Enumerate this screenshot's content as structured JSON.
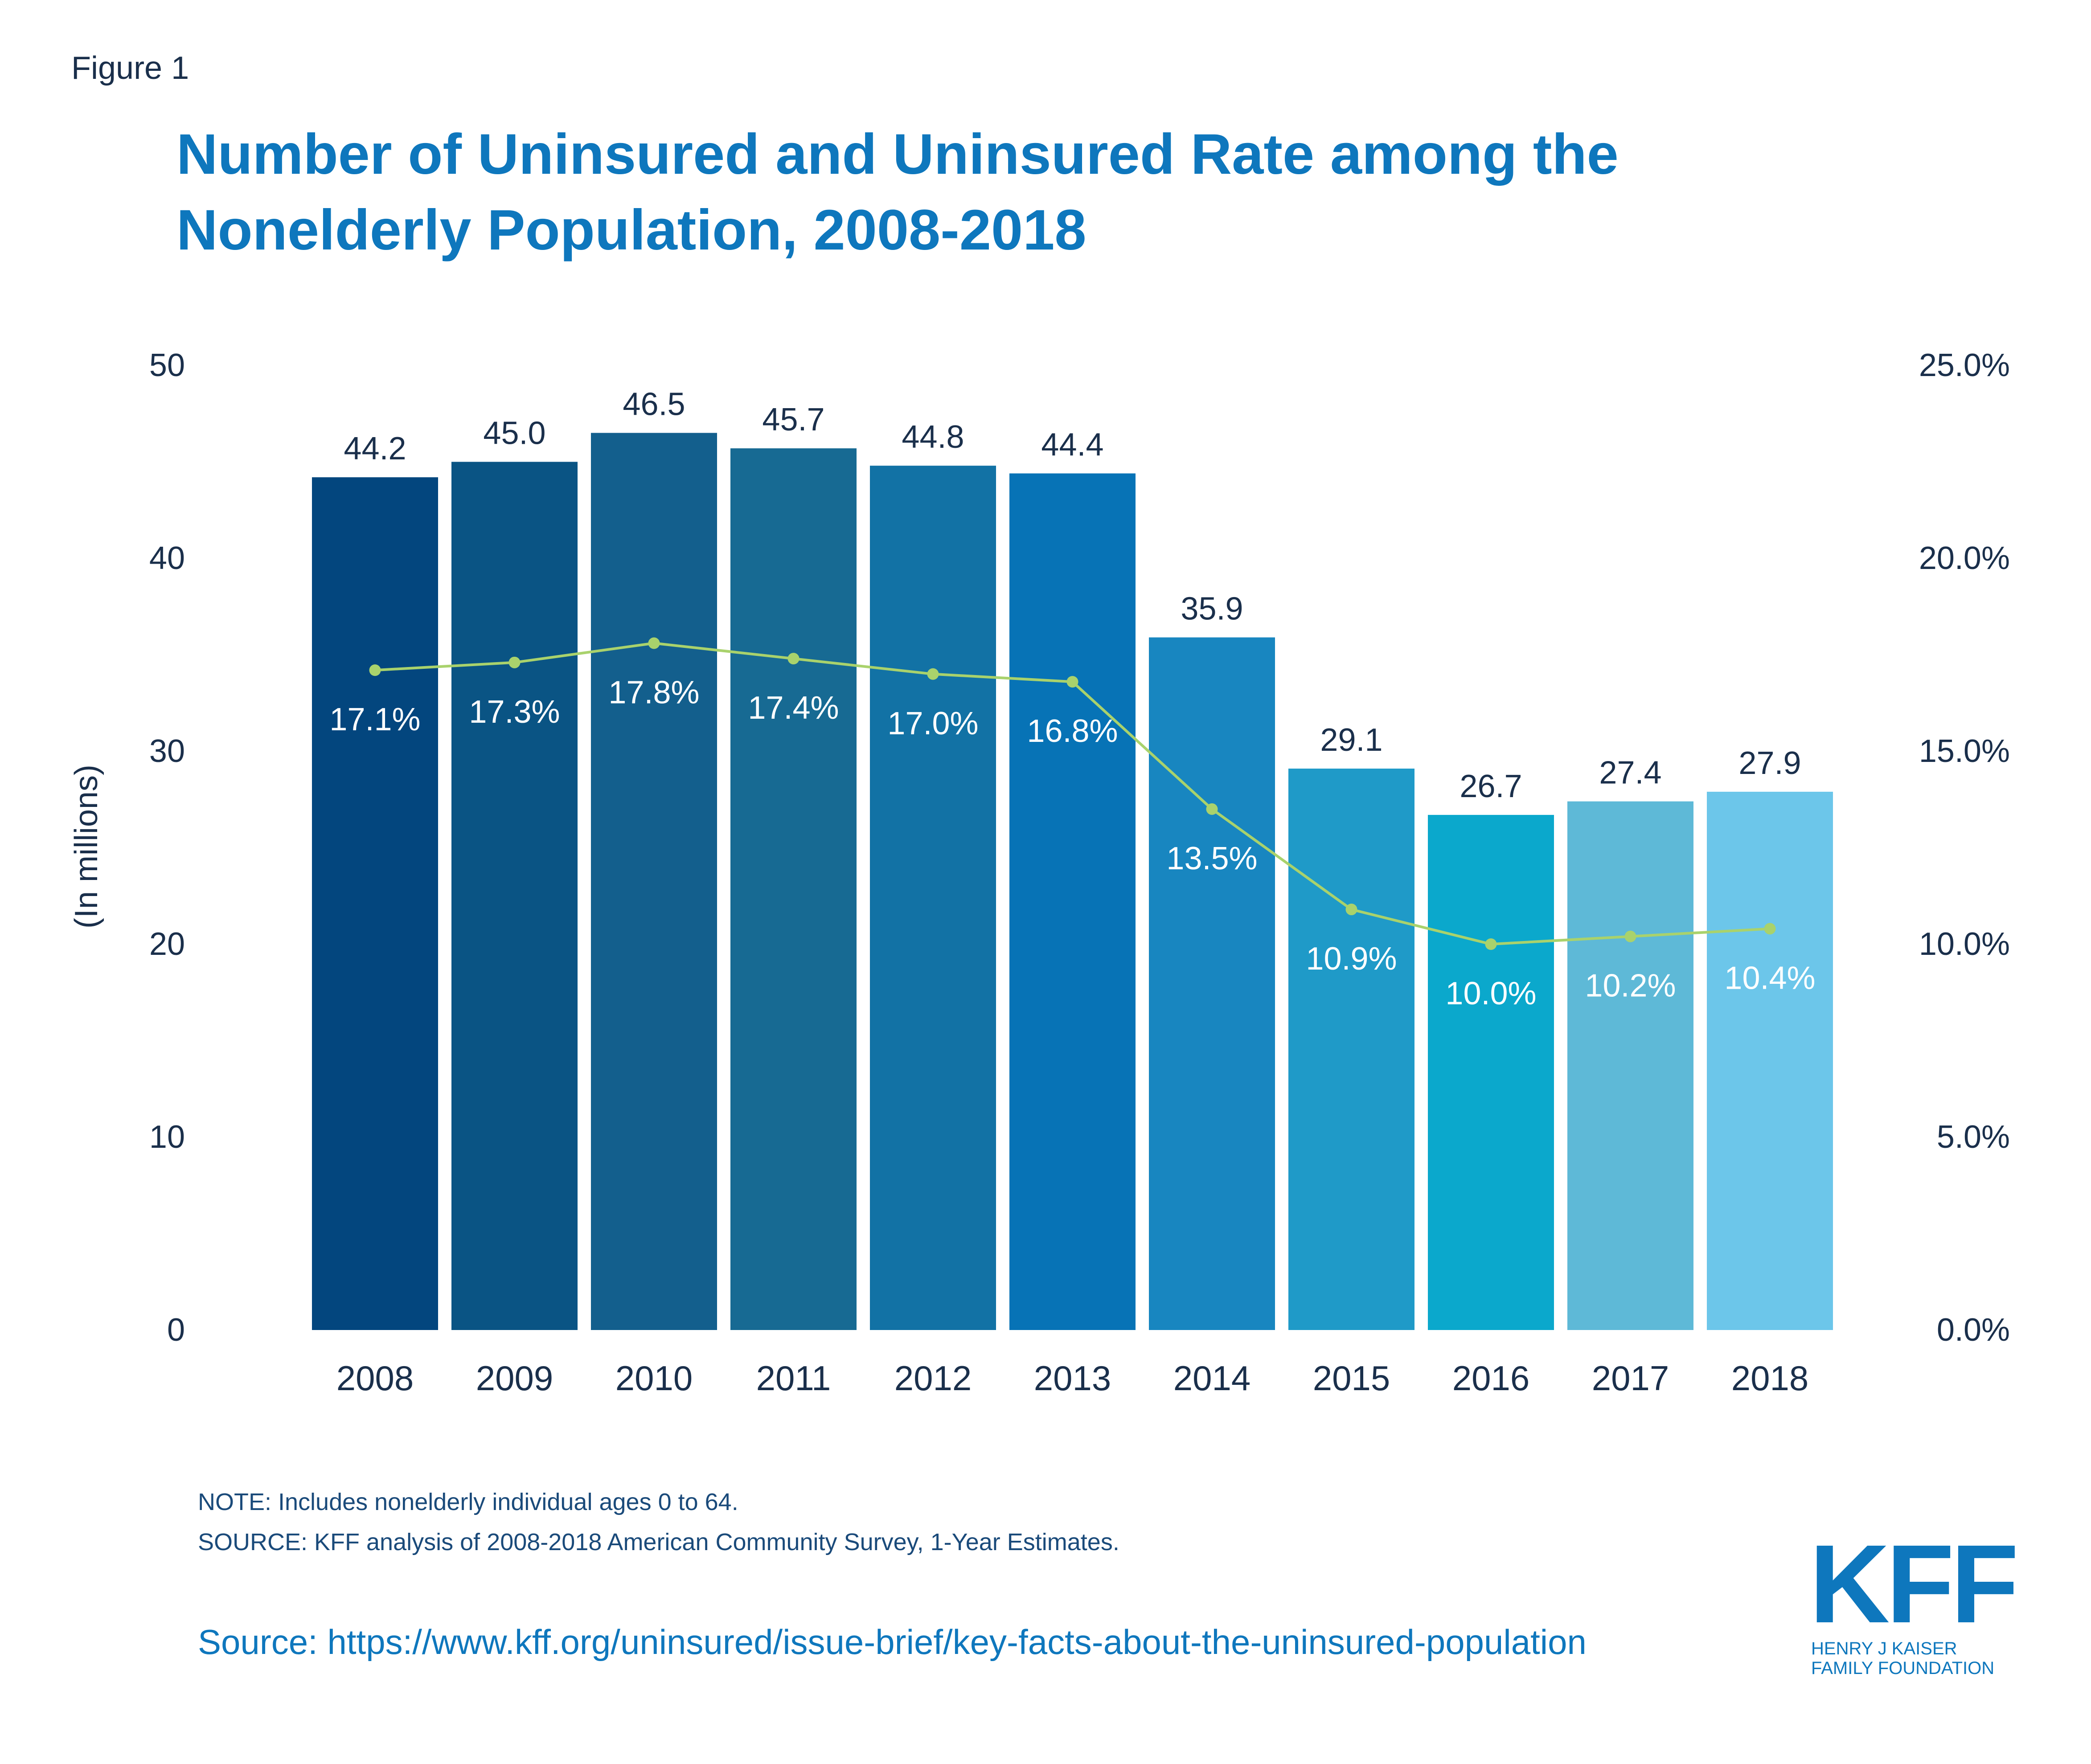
{
  "figure_label": "Figure 1",
  "title": "Number of Uninsured and Uninsured Rate among the Nonelderly Population, 2008-2018",
  "note": "NOTE: Includes nonelderly individual ages 0 to 64.",
  "source": "SOURCE: KFF analysis of 2008-2018 American Community Survey, 1-Year Estimates.",
  "url_line": "Source: https://www.kff.org/uninsured/issue-brief/key-facts-about-the-uninsured-population",
  "logo": {
    "mark": "KFF",
    "line1": "HENRY J KAISER",
    "line2": "FAMILY FOUNDATION"
  },
  "colors": {
    "title": "#0e77bd",
    "text": "#1a2f4b",
    "line": "#a9d26c",
    "bars": [
      "#03467e",
      "#0a5484",
      "#135f8d",
      "#176a93",
      "#1272a5",
      "#0773b6",
      "#1886c0",
      "#1f9ac8",
      "#0ba8cc",
      "#5eb9d7",
      "#6cc6ea"
    ]
  },
  "chart_data": {
    "type": "bar",
    "categories": [
      "2008",
      "2009",
      "2010",
      "2011",
      "2012",
      "2013",
      "2014",
      "2015",
      "2016",
      "2017",
      "2018"
    ],
    "series": [
      {
        "values": [
          44.2,
          45.0,
          46.5,
          45.7,
          44.8,
          44.4,
          35.9,
          29.1,
          26.7,
          27.4,
          27.9
        ],
        "labels": [
          "44.2",
          "45.0",
          "46.5",
          "45.7",
          "44.8",
          "44.4",
          "35.9",
          "29.1",
          "26.7",
          "27.4",
          "27.9"
        ],
        "type": "bar",
        "axis": "left"
      },
      {
        "values": [
          17.1,
          17.3,
          17.8,
          17.4,
          17.0,
          16.8,
          13.5,
          10.9,
          10.0,
          10.2,
          10.4
        ],
        "labels": [
          "17.1%",
          "17.3%",
          "17.8%",
          "17.4%",
          "17.0%",
          "16.8%",
          "13.5%",
          "10.9%",
          "10.0%",
          "10.2%",
          "10.4%"
        ],
        "type": "line",
        "axis": "right"
      }
    ],
    "ylabel": "(In millions)",
    "ylim": [
      0,
      50
    ],
    "yticks": [
      "0",
      "10",
      "20",
      "30",
      "40",
      "50"
    ],
    "y2lim": [
      0,
      25
    ],
    "y2ticks": [
      "0.0%",
      "5.0%",
      "10.0%",
      "15.0%",
      "20.0%",
      "25.0%"
    ],
    "grid": false,
    "legend": "none"
  }
}
